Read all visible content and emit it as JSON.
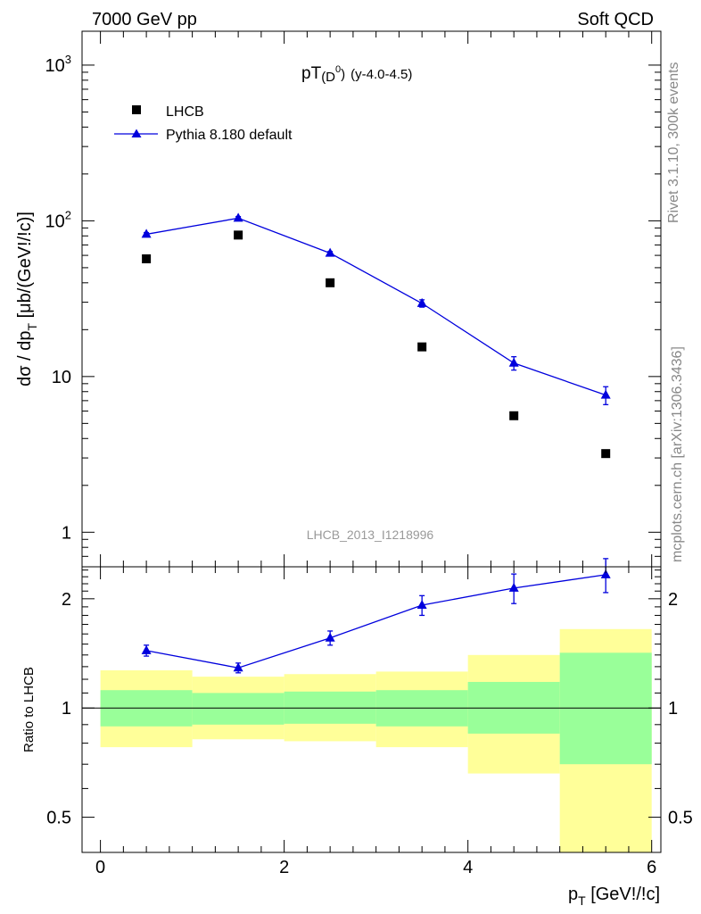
{
  "header": {
    "left": "7000 GeV pp",
    "right": "Soft QCD"
  },
  "side_text": {
    "rivet": "Rivet 3.1.10,  300k events",
    "mcplots": "mcplots.cern.ch [arXiv:1306.3436]"
  },
  "colors": {
    "pythia": "#0000dd",
    "data": "#000000",
    "band_inner": "#99ff99",
    "band_outer": "#ffff99"
  },
  "chart_data": [
    {
      "type": "scatter",
      "title_main": "pT",
      "title_sub": "(D",
      "title_sup": "0",
      "title_close": ")",
      "title_extra": "(y-4.0-4.5)",
      "analysis": "LHCB_2013_I1218996",
      "ylabel_main": "dσ / dp",
      "ylabel_sub": "T",
      "ylabel_tail": " [μb/(GeV!/!c)]",
      "yscale": "log",
      "ylim": [
        0.6,
        1650
      ],
      "xlim": [
        -0.2,
        6.1
      ],
      "yticks": [
        {
          "v": 1,
          "label": "1"
        },
        {
          "v": 10,
          "label": "10"
        },
        {
          "v": 100,
          "label": "10",
          "sup": "2"
        },
        {
          "v": 1000,
          "label": "10",
          "sup": "3"
        }
      ],
      "legend": [
        {
          "name": "LHCB",
          "marker": "square"
        },
        {
          "name": "Pythia 8.180 default",
          "marker": "triangle"
        }
      ],
      "series": [
        {
          "name": "LHCB",
          "x": [
            0.5,
            1.5,
            2.5,
            3.5,
            4.5,
            5.5
          ],
          "y": [
            57,
            81,
            40,
            15.5,
            5.6,
            3.2
          ]
        },
        {
          "name": "Pythia 8.180 default",
          "x": [
            0.5,
            1.5,
            2.5,
            3.5,
            4.5,
            5.5
          ],
          "y": [
            82,
            104,
            62,
            29.5,
            12.2,
            7.6
          ],
          "err": [
            [
              2,
              2
            ],
            [
              2.5,
              2.5
            ],
            [
              1.5,
              1.5
            ],
            [
              1.6,
              1.6
            ],
            [
              1.2,
              1.2
            ],
            [
              1.0,
              1.0
            ]
          ]
        }
      ]
    },
    {
      "type": "scatter",
      "xlabel_main": "p",
      "xlabel_sub": "T",
      "xlabel_tail": " [GeV!/!c]",
      "ylabel": "Ratio to LHCB",
      "yscale": "log",
      "ylim": [
        0.4,
        2.45
      ],
      "xlim": [
        -0.2,
        6.1
      ],
      "xticks": [
        0,
        2,
        4,
        6
      ],
      "yticks": [
        {
          "v": 0.5,
          "label": "0.5"
        },
        {
          "v": 1,
          "label": "1"
        },
        {
          "v": 2,
          "label": "2"
        }
      ],
      "bands": [
        {
          "x0": 0,
          "x1": 1,
          "inner": [
            0.89,
            1.12
          ],
          "outer": [
            0.78,
            1.27
          ]
        },
        {
          "x0": 1,
          "x1": 2,
          "inner": [
            0.9,
            1.1
          ],
          "outer": [
            0.82,
            1.22
          ]
        },
        {
          "x0": 2,
          "x1": 3,
          "inner": [
            0.905,
            1.11
          ],
          "outer": [
            0.81,
            1.24
          ]
        },
        {
          "x0": 3,
          "x1": 4,
          "inner": [
            0.89,
            1.12
          ],
          "outer": [
            0.78,
            1.26
          ]
        },
        {
          "x0": 4,
          "x1": 5,
          "inner": [
            0.85,
            1.18
          ],
          "outer": [
            0.66,
            1.4
          ]
        },
        {
          "x0": 5,
          "x1": 6,
          "inner": [
            0.7,
            1.42
          ],
          "outer": [
            0.4,
            1.65
          ]
        }
      ],
      "series": [
        {
          "name": "Pythia 8.180 default",
          "x": [
            0.5,
            1.5,
            2.5,
            3.5,
            4.5,
            5.5
          ],
          "y": [
            1.44,
            1.29,
            1.56,
            1.92,
            2.14,
            2.33
          ],
          "err": [
            [
              0.05,
              0.05
            ],
            [
              0.04,
              0.04
            ],
            [
              0.07,
              0.07
            ],
            [
              0.12,
              0.12
            ],
            [
              0.2,
              0.2
            ],
            [
              0.25,
              0.25
            ]
          ]
        }
      ]
    }
  ]
}
